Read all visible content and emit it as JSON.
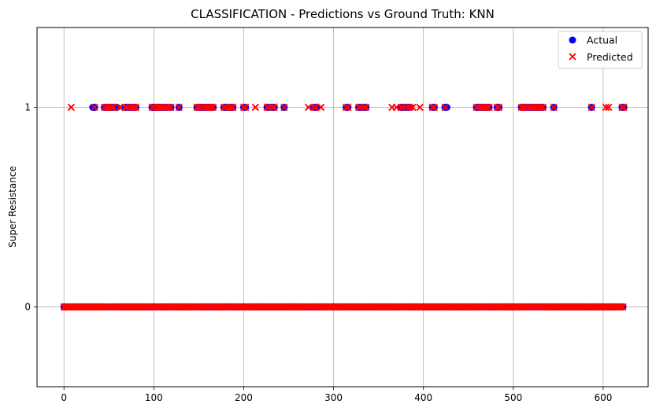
{
  "chart_data": {
    "type": "scatter",
    "title": "CLASSIFICATION - Predictions vs Ground Truth: KNN",
    "xlabel": "",
    "ylabel": "Super Resistance",
    "xlim": [
      -30,
      650
    ],
    "ylim": [
      -0.4,
      1.4
    ],
    "xticks": [
      0,
      100,
      200,
      300,
      400,
      500,
      600
    ],
    "yticks": [
      0,
      1
    ],
    "grid": true,
    "legend_position": "top-right",
    "n_samples": 624,
    "series": [
      {
        "name": "Actual",
        "marker": "circle",
        "color": "#0000ff",
        "positive_x": [
          32,
          34,
          45,
          47,
          49,
          50,
          52,
          53,
          55,
          57,
          59,
          68,
          70,
          72,
          74,
          76,
          78,
          80,
          98,
          100,
          102,
          104,
          106,
          108,
          110,
          112,
          114,
          116,
          119,
          128,
          148,
          150,
          152,
          154,
          156,
          158,
          160,
          162,
          164,
          166,
          178,
          180,
          182,
          184,
          186,
          188,
          200,
          202,
          226,
          228,
          230,
          232,
          234,
          245,
          278,
          280,
          282,
          314,
          316,
          328,
          330,
          332,
          334,
          336,
          375,
          377,
          379,
          381,
          383,
          385,
          410,
          412,
          424,
          426,
          459,
          461,
          463,
          465,
          467,
          469,
          471,
          473,
          482,
          484,
          509,
          511,
          513,
          515,
          517,
          519,
          521,
          523,
          525,
          527,
          529,
          531,
          533,
          545,
          587,
          621,
          623
        ]
      },
      {
        "name": "Predicted",
        "marker": "x",
        "color": "#ff0000",
        "positive_x": [
          8,
          34,
          45,
          47,
          49,
          52,
          53,
          55,
          62,
          68,
          70,
          74,
          76,
          78,
          80,
          98,
          100,
          104,
          106,
          108,
          110,
          112,
          114,
          116,
          119,
          128,
          148,
          150,
          152,
          156,
          158,
          160,
          162,
          164,
          166,
          178,
          180,
          184,
          186,
          188,
          200,
          202,
          213,
          226,
          228,
          232,
          234,
          245,
          272,
          278,
          280,
          286,
          314,
          316,
          328,
          330,
          334,
          336,
          365,
          370,
          375,
          377,
          381,
          385,
          388,
          396,
          410,
          412,
          424,
          459,
          461,
          465,
          467,
          469,
          471,
          473,
          482,
          484,
          509,
          511,
          513,
          517,
          519,
          521,
          523,
          525,
          529,
          531,
          533,
          545,
          587,
          603,
          606,
          621,
          623
        ]
      }
    ]
  }
}
